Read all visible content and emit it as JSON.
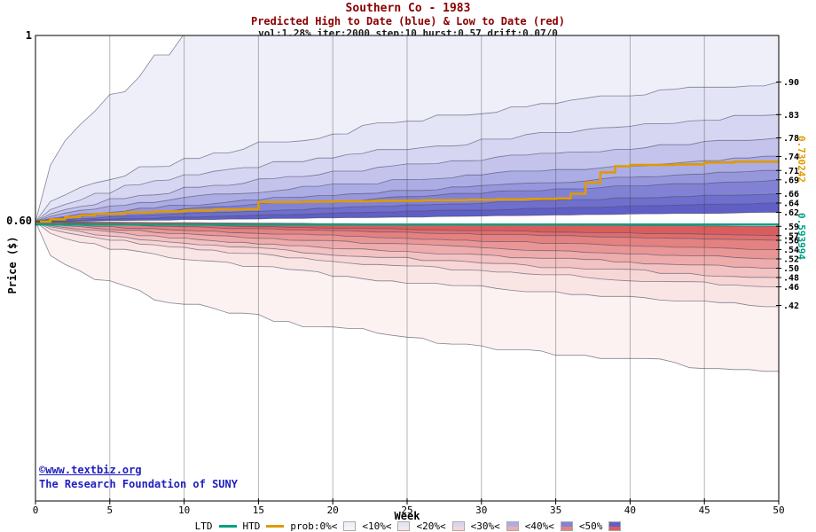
{
  "header": {
    "title": "Southern Co - 1983",
    "subtitle": "Predicted High to Date (blue) &  Low to Date (red)",
    "params": "vol:1.28% iter:2000 step:10 hurst:0.57 drift:0.07/0",
    "title_color": "#8b0000",
    "params_color": "#1a1a1a"
  },
  "axes": {
    "price_label": "Price ($)",
    "week_label": "Week",
    "y_max_label": "1",
    "start_label": "0.60",
    "x_ticks": [
      "0",
      "5",
      "10",
      "15",
      "20",
      "25",
      "30",
      "35",
      "40",
      "45",
      "50"
    ],
    "x_tick_values": [
      0,
      5,
      10,
      15,
      20,
      25,
      30,
      35,
      40,
      45,
      50
    ],
    "right_ticks": [
      {
        "label": ".90",
        "value": 0.9
      },
      {
        "label": ".83",
        "value": 0.83
      },
      {
        "label": ".78",
        "value": 0.78
      },
      {
        "label": ".74",
        "value": 0.74
      },
      {
        "label": ".71",
        "value": 0.71
      },
      {
        "label": ".69",
        "value": 0.69
      },
      {
        "label": ".66",
        "value": 0.66
      },
      {
        "label": ".64",
        "value": 0.64
      },
      {
        "label": ".62",
        "value": 0.62
      },
      {
        "label": ".59",
        "value": 0.59
      },
      {
        "label": ".57",
        "value": 0.57
      },
      {
        "label": ".56",
        "value": 0.56
      },
      {
        "label": ".54",
        "value": 0.54
      },
      {
        "label": ".52",
        "value": 0.52
      },
      {
        "label": ".50",
        "value": 0.5
      },
      {
        "label": ".48",
        "value": 0.48
      },
      {
        "label": ".46",
        "value": 0.46
      },
      {
        "label": ".42",
        "value": 0.42
      }
    ]
  },
  "annotations": {
    "htd_value_label": "0.730242",
    "ltd_value_label": "0.593994",
    "htd_color": "#e09a00",
    "ltd_color": "#00a080"
  },
  "watermark": {
    "line1": "©www.textbiz.org",
    "line2": "The Research Foundation of SUNY",
    "color": "#1f1fbf"
  },
  "legend": {
    "ltd_label": "LTD",
    "htd_label": "HTD",
    "prob_items": [
      {
        "label": "prob:0%<",
        "blue": "#efeffa",
        "red": "#fdf2f2"
      },
      {
        "label": "<10%<",
        "blue": "#e4e4f7",
        "red": "#fae5e5"
      },
      {
        "label": "<20%<",
        "blue": "#d6d6f2",
        "red": "#f7d6d6"
      },
      {
        "label": "<30%<",
        "blue": "#adade5",
        "red": "#eeacac"
      },
      {
        "label": "<40%<",
        "blue": "#8282d5",
        "red": "#e48181"
      },
      {
        "label": "<50%",
        "blue": "#5f5fc6",
        "red": "#d95d5d"
      }
    ]
  },
  "chart_data": {
    "type": "area",
    "title": "Southern Co - 1983",
    "subtitle": "Predicted High to Date (blue) &  Low to Date (red)",
    "xlabel": "Week",
    "ylabel": "Price ($)",
    "x_range": [
      0,
      50
    ],
    "y_range": [
      0,
      1
    ],
    "grid": "vertical-only",
    "start_price": 0.6,
    "ltd": 0.593994,
    "htd_final": 0.730242,
    "htd_steps": [
      [
        0,
        0.6
      ],
      [
        1,
        0.605
      ],
      [
        2,
        0.61
      ],
      [
        3,
        0.614
      ],
      [
        4,
        0.617
      ],
      [
        6,
        0.62
      ],
      [
        8,
        0.622
      ],
      [
        10,
        0.624
      ],
      [
        12,
        0.626
      ],
      [
        14,
        0.627
      ],
      [
        15,
        0.642
      ],
      [
        18,
        0.643
      ],
      [
        20,
        0.644
      ],
      [
        23,
        0.645
      ],
      [
        26,
        0.646
      ],
      [
        29,
        0.647
      ],
      [
        31,
        0.648
      ],
      [
        33,
        0.649
      ],
      [
        35,
        0.65
      ],
      [
        36,
        0.66
      ],
      [
        37,
        0.684
      ],
      [
        38,
        0.706
      ],
      [
        39,
        0.719
      ],
      [
        40,
        0.722
      ],
      [
        43,
        0.723
      ],
      [
        45,
        0.727
      ],
      [
        47,
        0.729
      ],
      [
        50,
        0.730242
      ]
    ],
    "high_fan": {
      "description": "Predicted high-to-date probability band boundaries; end value at week 50, growth exponent vs week",
      "ends": [
        1.45,
        0.9,
        0.83,
        0.78,
        0.74,
        0.71,
        0.69,
        0.66,
        0.64,
        0.62
      ],
      "exponents": [
        0.5,
        0.5,
        0.55,
        0.6,
        0.65,
        0.7,
        0.75,
        0.8,
        0.88,
        1.0
      ],
      "band_colors": [
        "#efeffa",
        "#e4e4f7",
        "#d6d6f2",
        "#c3c3ec",
        "#adade5",
        "#9797dd",
        "#8282d5",
        "#6f6fcd",
        "#5f5fc6"
      ]
    },
    "low_fan": {
      "description": "Predicted low-to-date probability band boundaries; end value at week 50, growth exponent vs week",
      "ends": [
        0.28,
        0.42,
        0.46,
        0.48,
        0.5,
        0.52,
        0.54,
        0.56,
        0.57,
        0.59
      ],
      "exponents": [
        0.38,
        0.5,
        0.55,
        0.6,
        0.65,
        0.7,
        0.75,
        0.8,
        0.88,
        1.0
      ],
      "band_colors": [
        "#fdf2f2",
        "#fae5e5",
        "#f7d6d6",
        "#f3c2c2",
        "#eeacac",
        "#e99696",
        "#e48181",
        "#de6e6e",
        "#d95d5d"
      ]
    }
  }
}
